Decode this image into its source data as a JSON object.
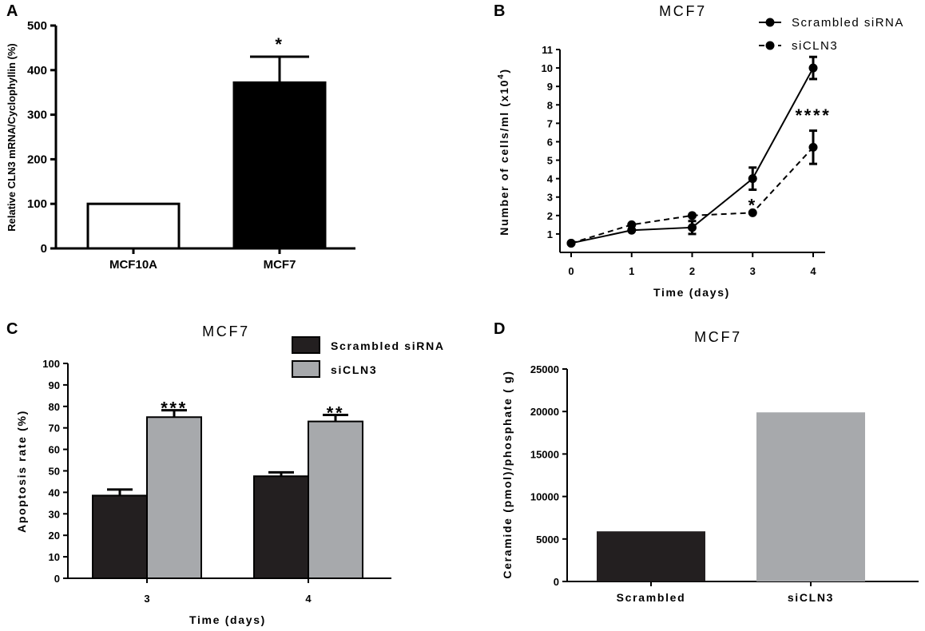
{
  "chart_data": [
    {
      "panel": "A",
      "type": "bar",
      "title": "",
      "ylabel": "Relative CLN3 mRNA/Cyclophyllin (%)",
      "xlabel": "",
      "ylim": [
        0,
        500
      ],
      "yticks": [
        0,
        100,
        200,
        300,
        400,
        500
      ],
      "categories": [
        "MCF10A",
        "MCF7"
      ],
      "values": [
        100,
        372
      ],
      "errors": [
        0,
        58
      ],
      "fills": [
        "#ffffff",
        "#000000"
      ],
      "annotations": [
        "",
        "*"
      ]
    },
    {
      "panel": "B",
      "type": "line",
      "title": "MCF7",
      "xlabel": "Time (days)",
      "ylabel_main": "Number of cells/ml (x10",
      "ylabel_sup": "4",
      "ylabel_end": ")",
      "xlim": [
        0,
        4
      ],
      "ylim": [
        0,
        11
      ],
      "xticks": [
        0,
        1,
        2,
        3,
        4
      ],
      "yticks": [
        1,
        2,
        3,
        4,
        5,
        6,
        7,
        8,
        9,
        10,
        11
      ],
      "series": [
        {
          "name": "Scrambled siRNA",
          "style": "solid",
          "x": [
            0,
            1,
            2,
            3,
            4
          ],
          "values": [
            0.5,
            1.2,
            1.35,
            4.0,
            10.0
          ],
          "errors": [
            0,
            0,
            0.35,
            0.6,
            0.6
          ]
        },
        {
          "name": "siCLN3",
          "style": "dashed",
          "x": [
            0,
            1,
            2,
            3,
            4
          ],
          "values": [
            0.5,
            1.5,
            2.0,
            2.15,
            5.7
          ],
          "errors": [
            0,
            0,
            0,
            0,
            0.9
          ]
        }
      ],
      "annotations": [
        {
          "text": "*",
          "x": 3
        },
        {
          "text": "****",
          "x": 4
        }
      ]
    },
    {
      "panel": "C",
      "type": "bar",
      "title": "MCF7",
      "xlabel": "Time (days)",
      "ylabel": "Apoptosis rate (%)",
      "ylim": [
        0,
        100
      ],
      "yticks": [
        0,
        10,
        20,
        30,
        40,
        50,
        60,
        70,
        80,
        90,
        100
      ],
      "categories": [
        "3",
        "4"
      ],
      "series": [
        {
          "name": "Scrambled siRNA",
          "color": "#231f20",
          "values": [
            38.5,
            47.5
          ],
          "errors": [
            2.8,
            1.8
          ]
        },
        {
          "name": "siCLN3",
          "color": "#a7a9ac",
          "values": [
            75,
            73
          ],
          "errors": [
            3.2,
            3.0
          ]
        }
      ],
      "annotations": [
        "***",
        "**"
      ]
    },
    {
      "panel": "D",
      "type": "bar",
      "title": "MCF7",
      "xlabel": "",
      "ylabel": "Ceramide (pmol)/phosphate ( g)",
      "ylim": [
        0,
        25000
      ],
      "yticks": [
        0,
        5000,
        10000,
        15000,
        20000,
        25000
      ],
      "categories": [
        "Scrambled",
        "siCLN3"
      ],
      "values": [
        5900,
        19900
      ],
      "colors": [
        "#231f20",
        "#a7a9ac"
      ]
    }
  ]
}
